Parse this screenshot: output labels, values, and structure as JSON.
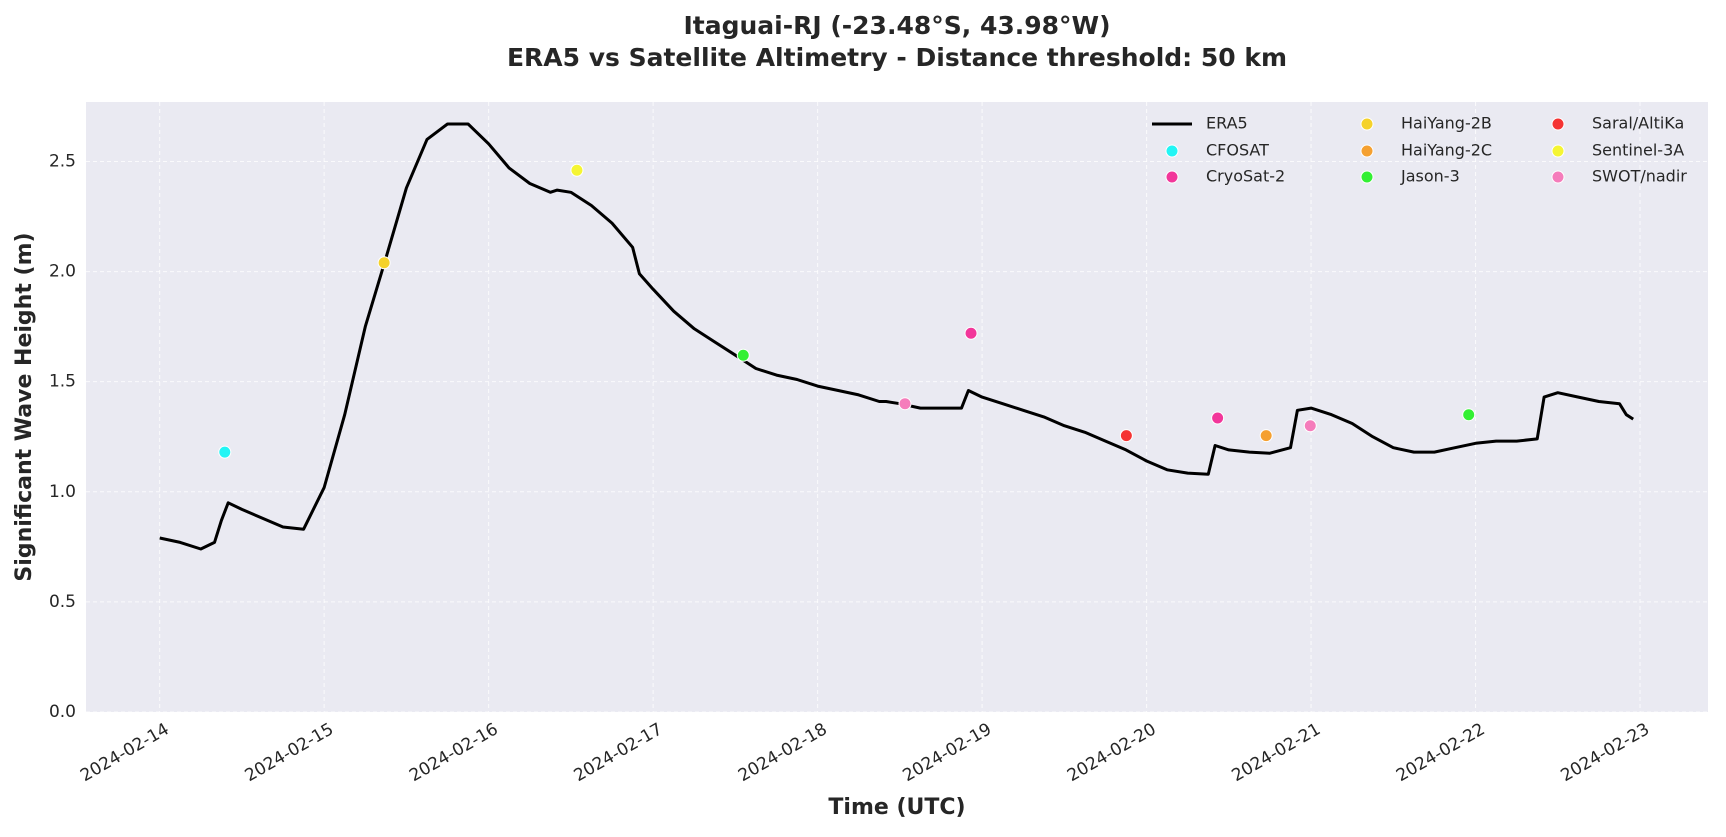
{
  "chart_data": {
    "type": "line",
    "title": "Itaguai-RJ (-23.48°S, 43.98°W)",
    "subtitle": "ERA5 vs Satellite Altimetry - Distance threshold: 50 km",
    "x_label": "Time (UTC)",
    "y_label": "Significant Wave Height (m)",
    "xlim": [
      "2024-02-13T13:15",
      "2024-02-23T09:55"
    ],
    "xticks": [
      "2024-02-14",
      "2024-02-15",
      "2024-02-16",
      "2024-02-17",
      "2024-02-18",
      "2024-02-19",
      "2024-02-20",
      "2024-02-21",
      "2024-02-22",
      "2024-02-23"
    ],
    "ylim": [
      0,
      2.77
    ],
    "yticks": [
      {
        "value": 0,
        "label": "0.0"
      },
      {
        "value": 0.5,
        "label": "0.5"
      },
      {
        "value": 1,
        "label": "1.0"
      },
      {
        "value": 1.5,
        "label": "1.5"
      },
      {
        "value": 2,
        "label": "2.0"
      },
      {
        "value": 2.5,
        "label": "2.5"
      }
    ],
    "grid": true,
    "legend": "upper right",
    "series": [
      {
        "name": "ERA5",
        "type": "line",
        "color": "#000000",
        "x": [
          "2024-02-14T00:00",
          "2024-02-14T03:00",
          "2024-02-14T06:00",
          "2024-02-14T08:00",
          "2024-02-14T09:00",
          "2024-02-14T10:00",
          "2024-02-14T12:00",
          "2024-02-14T15:00",
          "2024-02-14T18:00",
          "2024-02-14T21:00",
          "2024-02-15T00:00",
          "2024-02-15T03:00",
          "2024-02-15T06:00",
          "2024-02-15T09:00",
          "2024-02-15T12:00",
          "2024-02-15T15:00",
          "2024-02-15T18:00",
          "2024-02-15T21:00",
          "2024-02-16T00:00",
          "2024-02-16T03:00",
          "2024-02-16T06:00",
          "2024-02-16T09:00",
          "2024-02-16T10:00",
          "2024-02-16T12:00",
          "2024-02-16T15:00",
          "2024-02-16T18:00",
          "2024-02-16T21:00",
          "2024-02-16T22:00",
          "2024-02-17T00:00",
          "2024-02-17T03:00",
          "2024-02-17T06:00",
          "2024-02-17T09:00",
          "2024-02-17T12:00",
          "2024-02-17T15:00",
          "2024-02-17T18:00",
          "2024-02-17T21:00",
          "2024-02-18T00:00",
          "2024-02-18T03:00",
          "2024-02-18T06:00",
          "2024-02-18T09:00",
          "2024-02-18T10:00",
          "2024-02-18T12:00",
          "2024-02-18T15:00",
          "2024-02-18T18:00",
          "2024-02-18T21:00",
          "2024-02-18T22:00",
          "2024-02-19T00:00",
          "2024-02-19T03:00",
          "2024-02-19T06:00",
          "2024-02-19T09:00",
          "2024-02-19T12:00",
          "2024-02-19T15:00",
          "2024-02-19T18:00",
          "2024-02-19T21:00",
          "2024-02-20T00:00",
          "2024-02-20T03:00",
          "2024-02-20T06:00",
          "2024-02-20T09:00",
          "2024-02-20T10:00",
          "2024-02-20T12:00",
          "2024-02-20T15:00",
          "2024-02-20T18:00",
          "2024-02-20T21:00",
          "2024-02-20T22:00",
          "2024-02-21T00:00",
          "2024-02-21T03:00",
          "2024-02-21T06:00",
          "2024-02-21T09:00",
          "2024-02-21T12:00",
          "2024-02-21T15:00",
          "2024-02-21T18:00",
          "2024-02-21T21:00",
          "2024-02-22T00:00",
          "2024-02-22T03:00",
          "2024-02-22T06:00",
          "2024-02-22T09:00",
          "2024-02-22T10:00",
          "2024-02-22T12:00",
          "2024-02-22T15:00",
          "2024-02-22T18:00",
          "2024-02-22T21:00",
          "2024-02-22T22:00",
          "2024-02-22T23:00"
        ],
        "values": [
          0.79,
          0.77,
          0.74,
          0.77,
          0.87,
          0.95,
          0.92,
          0.88,
          0.84,
          0.83,
          1.02,
          1.35,
          1.75,
          2.06,
          2.38,
          2.6,
          2.67,
          2.67,
          2.58,
          2.47,
          2.4,
          2.36,
          2.37,
          2.36,
          2.3,
          2.22,
          2.11,
          1.99,
          1.92,
          1.82,
          1.74,
          1.68,
          1.62,
          1.56,
          1.53,
          1.51,
          1.48,
          1.46,
          1.44,
          1.41,
          1.41,
          1.4,
          1.38,
          1.38,
          1.38,
          1.46,
          1.43,
          1.4,
          1.37,
          1.34,
          1.3,
          1.27,
          1.23,
          1.19,
          1.14,
          1.1,
          1.085,
          1.08,
          1.21,
          1.19,
          1.18,
          1.175,
          1.2,
          1.37,
          1.38,
          1.35,
          1.31,
          1.25,
          1.2,
          1.18,
          1.18,
          1.2,
          1.22,
          1.23,
          1.23,
          1.24,
          1.43,
          1.45,
          1.43,
          1.41,
          1.4,
          1.35,
          1.33
        ]
      },
      {
        "name": "CFOSAT",
        "type": "scatter",
        "color": "#22f5f5",
        "x": [
          "2024-02-14T09:30"
        ],
        "values": [
          1.18
        ]
      },
      {
        "name": "CryoSat-2",
        "type": "scatter",
        "color": "#f2369a",
        "x": [
          "2024-02-18T22:23",
          "2024-02-20T10:22"
        ],
        "values": [
          1.72,
          1.335
        ]
      },
      {
        "name": "HaiYang-2B",
        "type": "scatter",
        "color": "#f5d22a",
        "x": [
          "2024-02-15T08:45"
        ],
        "values": [
          2.04
        ]
      },
      {
        "name": "HaiYang-2C",
        "type": "scatter",
        "color": "#f5a030",
        "x": [
          "2024-02-20T17:27"
        ],
        "values": [
          1.255
        ]
      },
      {
        "name": "Jason-3",
        "type": "scatter",
        "color": "#33f033",
        "x": [
          "2024-02-17T13:09",
          "2024-02-21T23:00"
        ],
        "values": [
          1.62,
          1.35
        ]
      },
      {
        "name": "Saral/AltiKa",
        "type": "scatter",
        "color": "#f53333",
        "x": [
          "2024-02-19T21:03"
        ],
        "values": [
          1.255
        ]
      },
      {
        "name": "Sentinel-3A",
        "type": "scatter",
        "color": "#f5f533",
        "x": [
          "2024-02-16T12:53"
        ],
        "values": [
          2.46
        ]
      },
      {
        "name": "SWOT/nadir",
        "type": "scatter",
        "color": "#f57cbb",
        "x": [
          "2024-02-18T12:45",
          "2024-02-20T23:53"
        ],
        "values": [
          1.4,
          1.3
        ]
      }
    ]
  }
}
